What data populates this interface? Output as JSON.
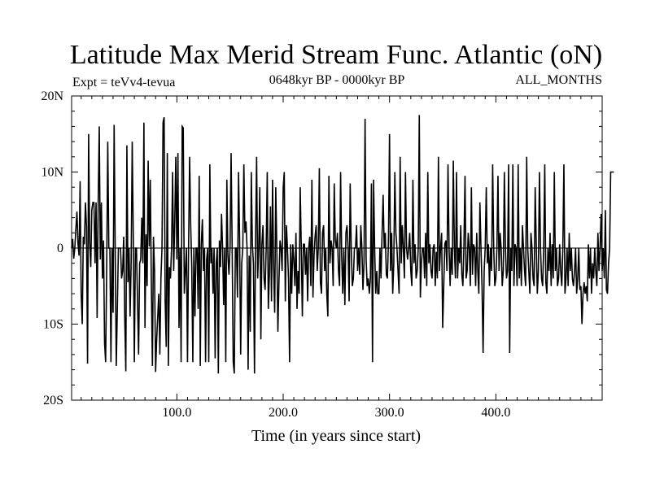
{
  "chart_data": {
    "type": "line",
    "title": "Latitude Max Merid Stream Func. Atlantic (oN)",
    "subtitle_left": "Expt = teVv4-tevua",
    "subtitle_center": "0648kyr BP - 0000kyr BP",
    "subtitle_right": "ALL_MONTHS",
    "xlabel": "Time (in years since start)",
    "ylabel": "",
    "xlim": [
      1,
      500
    ],
    "ylim": [
      -20,
      20
    ],
    "x_ticks": [
      100.0,
      200.0,
      300.0,
      400.0
    ],
    "x_tick_labels": [
      "100.0",
      "200.0",
      "300.0",
      "400.0"
    ],
    "y_ticks": [
      20,
      10,
      0,
      -10,
      -20
    ],
    "y_tick_labels": [
      "20N",
      "10N",
      "0",
      "10S",
      "20S"
    ],
    "zero_line": true,
    "grid": false,
    "series_color": "#000000",
    "series": [
      {
        "x_start": 1,
        "x_step": 1,
        "values": [
          0.0,
          1.2,
          -1.4,
          0.0,
          2.5,
          4.8,
          0.6,
          -1.0,
          8.8,
          -6.0,
          -10.0,
          1.5,
          0.5,
          6.0,
          2.8,
          -15.2,
          15.0,
          0.8,
          -2.5,
          5.0,
          6.0,
          6.0,
          -2.0,
          6.0,
          -9.2,
          6.0,
          16.0,
          -1.5,
          6.0,
          -4.0,
          1.0,
          -12.5,
          -15.0,
          -2.5,
          14.0,
          0.0,
          0.0,
          -15.0,
          0.0,
          -8.5,
          16.2,
          0.0,
          -15.5,
          -8.0,
          0.0,
          0.0,
          0.0,
          -4.0,
          -3.0,
          1.5,
          -9.5,
          -16.2,
          13.5,
          -4.5,
          0.0,
          -9.0,
          -2.0,
          14.0,
          1.5,
          -15.0,
          0.0,
          0.0,
          -7.0,
          -14.0,
          -2.0,
          -1.5,
          4.0,
          -2.0,
          16.5,
          -10.5,
          1.8,
          -5.0,
          11.5,
          0.2,
          9.0,
          -5.0,
          -15.5,
          1.5,
          -3.0,
          -16.3,
          -12.0,
          -9.0,
          -6.0,
          -14.0,
          -4.0,
          0.0,
          16.5,
          17.2,
          -7.0,
          -13.0,
          12.5,
          -15.5,
          -2.5,
          -4.0,
          0.0,
          10.0,
          -3.0,
          3.5,
          12.0,
          -1.5,
          12.5,
          -10.5,
          0.0,
          -15.0,
          16.0,
          15.8,
          -6.0,
          -3.0,
          0.0,
          -15.0,
          0.0,
          12.0,
          3.0,
          -2.5,
          -15.0,
          0.0,
          -9.0,
          0.0,
          0.0,
          -8.0,
          9.5,
          -15.5,
          0.5,
          3.8,
          -3.0,
          0.0,
          -15.0,
          -1.5,
          0.0,
          -15.0,
          11.0,
          -2.0,
          0.0,
          -6.0,
          0.0,
          -14.5,
          -2.0,
          0.0,
          -16.5,
          1.0,
          -2.5,
          4.5,
          0.0,
          -7.5,
          0.0,
          -15.0,
          9.0,
          -1.0,
          -3.5,
          0.0,
          12.5,
          0.0,
          -15.0,
          -16.5,
          0.0,
          0.0,
          -6.5,
          10.0,
          1.2,
          -14.0,
          -2.0,
          0.0,
          11.0,
          2.0,
          3.5,
          0.0,
          -16.0,
          -1.0,
          -11.0,
          10.0,
          0.5,
          -2.0,
          -16.5,
          1.0,
          12.0,
          -4.0,
          0.0,
          8.0,
          -12.0,
          0.5,
          3.0,
          -4.0,
          -5.5,
          0.0,
          10.0,
          -8.0,
          -3.5,
          5.5,
          -7.0,
          9.0,
          -2.5,
          -8.5,
          8.0,
          0.0,
          -11.0,
          -4.5,
          1.0,
          0.0,
          -3.0,
          8.0,
          10.0,
          -7.0,
          3.0,
          0.0,
          -4.0,
          -15.0,
          0.5,
          -6.0,
          0.5,
          -1.5,
          -5.0,
          2.0,
          -8.0,
          -3.0,
          -6.0,
          8.0,
          0.0,
          -9.0,
          0.5,
          0.5,
          -3.5,
          0.0,
          -7.0,
          0.0,
          1.5,
          -5.0,
          9.0,
          -6.5,
          -1.0,
          1.5,
          3.0,
          -3.0,
          0.0,
          10.5,
          -4.5,
          -6.0,
          2.0,
          3.0,
          -3.0,
          0.0,
          -6.0,
          -9.0,
          9.5,
          -2.0,
          1.0,
          0.0,
          -5.0,
          8.5,
          1.0,
          0.0,
          2.0,
          -3.0,
          -5.0,
          10.0,
          -1.0,
          -6.0,
          0.0,
          -7.5,
          2.0,
          3.0,
          0.0,
          -7.0,
          8.5,
          0.0,
          -5.0,
          -4.0,
          0.0,
          0.0,
          3.0,
          -3.0,
          0.0,
          -3.5,
          3.0,
          0.0,
          -5.5,
          -2.0,
          17.0,
          -1.5,
          -5.0,
          -4.0,
          -6.0,
          -4.0,
          8.5,
          -15.0,
          9.0,
          0.0,
          -6.0,
          -3.0,
          -6.0,
          -6.0,
          0.0,
          -4.0,
          2.0,
          7.0,
          0.0,
          2.0,
          -3.5,
          -4.0,
          1.0,
          15.0,
          -3.0,
          2.0,
          -6.0,
          -2.0,
          10.0,
          2.0,
          0.0,
          -3.0,
          -6.0,
          12.0,
          -2.0,
          3.0,
          0.0,
          -4.0,
          10.0,
          0.0,
          -1.5,
          0.0,
          2.0,
          -3.0,
          -5.0,
          9.0,
          -2.0,
          0.5,
          -4.0,
          -3.0,
          0.0,
          17.5,
          -6.5,
          -2.0,
          0.0,
          0.0,
          -4.0,
          2.0,
          -5.0,
          10.0,
          -2.0,
          0.5,
          -3.0,
          -4.0,
          0.0,
          0.5,
          -5.0,
          -0.5,
          -4.0,
          12.0,
          -3.0,
          0.0,
          2.0,
          -10.5,
          -5.0,
          0.5,
          1.0,
          -3.0,
          11.0,
          0.0,
          -5.0,
          0.0,
          -3.5,
          11.5,
          0.0,
          -4.0,
          10.0,
          -4.0,
          0.0,
          -2.0,
          3.0,
          -3.5,
          -5.0,
          0.5,
          9.5,
          -4.0,
          -3.0,
          2.0,
          0.0,
          -5.0,
          8.0,
          -3.5,
          0.5,
          0.0,
          -5.0,
          2.0,
          -3.0,
          -6.0,
          6.0,
          0.0,
          -5.0,
          -13.8,
          -3.0,
          0.0,
          8.0,
          -2.0,
          0.5,
          -5.0,
          0.0,
          -3.0,
          11.0,
          0.0,
          -5.0,
          -4.0,
          0.0,
          9.5,
          -3.0,
          2.0,
          0.0,
          -5.0,
          -3.0,
          10.0,
          0.0,
          -4.0,
          -3.0,
          11.0,
          -13.8,
          0.0,
          -3.0,
          11.0,
          -5.0,
          0.5,
          0.0,
          -5.0,
          11.0,
          -4.0,
          0.0,
          -5.0,
          3.0,
          0.0,
          -3.0,
          -5.0,
          12.0,
          0.0,
          -3.0,
          -6.0,
          2.0,
          0.0,
          -4.0,
          -5.0,
          8.0,
          0.5,
          -6.0,
          -3.0,
          10.0,
          0.0,
          -4.0,
          -5.0,
          0.0,
          11.0,
          -4.5,
          -6.0,
          0.0,
          -3.0,
          2.0,
          -5.0,
          0.5,
          -4.0,
          10.0,
          -3.0,
          0.0,
          -5.0,
          -4.0,
          0.5,
          -3.0,
          -5.0,
          0.0,
          11.0,
          -6.0,
          -4.0,
          0.0,
          -5.0,
          2.0,
          -3.0,
          0.0,
          -4.0,
          -5.0,
          -3.0,
          0.0,
          -6.0,
          -4.0,
          0.0,
          -5.5,
          -5.0,
          -10.0,
          -6.0,
          -4.5,
          -6.0,
          -5.0,
          -7.0,
          0.5,
          -4.0,
          0.0,
          -6.0,
          -2.0,
          -4.0,
          0.0,
          -3.0,
          -5.0,
          2.0,
          -3.0,
          0.0,
          4.5,
          -3.0,
          0.0,
          -4.0,
          5.0,
          -5.5,
          -6.0,
          -2.0,
          0.0,
          10.0,
          10.0,
          10.0,
          10.0
        ]
      }
    ]
  }
}
